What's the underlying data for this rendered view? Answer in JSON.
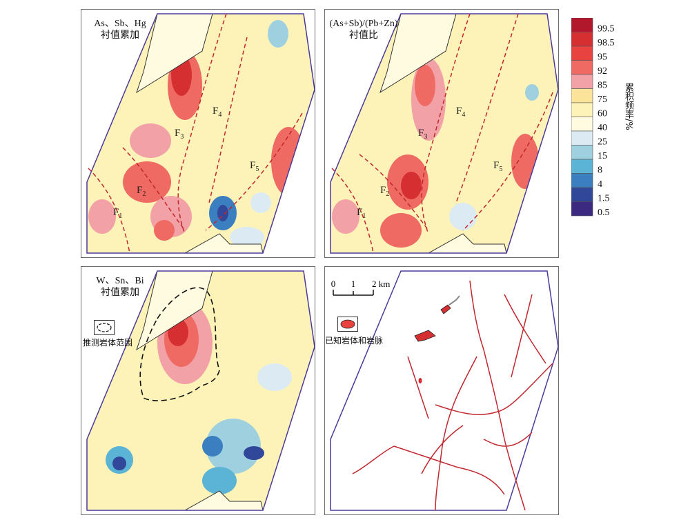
{
  "panels": [
    {
      "title_line1": "As、Sb、Hg",
      "title_line2": "衬值累加"
    },
    {
      "title_line1": "(As+Sb)/(Pb+Zn)",
      "title_line2": "衬值比"
    },
    {
      "title_line1": "W、Sn、Bi",
      "title_line2": "衬值累加"
    },
    {
      "title_line1": "",
      "title_line2": ""
    }
  ],
  "fault_labels": [
    {
      "base": "F",
      "sub": "1"
    },
    {
      "base": "F",
      "sub": "2"
    },
    {
      "base": "F",
      "sub": "3"
    },
    {
      "base": "F",
      "sub": "4"
    },
    {
      "base": "F",
      "sub": "5"
    }
  ],
  "legend": {
    "title": "累积频率/%",
    "levels": [
      "99.5",
      "98.5",
      "95",
      "92",
      "85",
      "75",
      "60",
      "40",
      "25",
      "15",
      "8",
      "4",
      "1.5",
      "0.5"
    ],
    "colors": [
      "#b2182b",
      "#d62f32",
      "#e8433f",
      "#ee6a63",
      "#f2a2a6",
      "#fbe49a",
      "#fdf3b8",
      "#fffbe0",
      "#dcebf3",
      "#9ed0e0",
      "#5bb3d6",
      "#3b7fc0",
      "#31489a",
      "#3b2a80"
    ]
  },
  "intrusion_legend": {
    "label": "推测岩体范围"
  },
  "rock_legend": {
    "label": "已知岩体和岩脉"
  },
  "scale_bar": {
    "ticks": [
      "0",
      "1",
      "2 km"
    ]
  }
}
